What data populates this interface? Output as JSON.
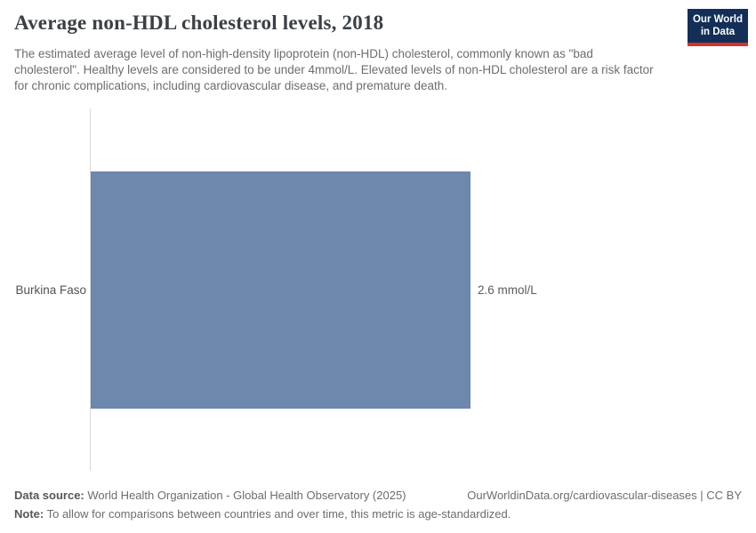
{
  "header": {
    "title": "Average non-HDL cholesterol levels, 2018",
    "subtitle": "The estimated average level of non-high-density lipoprotein (non-HDL) cholesterol, commonly known as \"bad cholesterol\". Healthy levels are considered to be under 4mmol/L. Elevated levels of non-HDL cholesterol are a risk factor for chronic complications, including cardiovascular disease, and premature death.",
    "logo": {
      "line1": "Our World",
      "line2": "in Data",
      "bg_color": "#132f57",
      "stripe_color": "#d0342c"
    }
  },
  "chart_data": {
    "type": "bar",
    "orientation": "horizontal",
    "title": "Average non-HDL cholesterol levels, 2018",
    "categories": [
      "Burkina Faso"
    ],
    "values": [
      2.6
    ],
    "unit": "mmol/L",
    "value_labels": [
      "2.6 mmol/L"
    ],
    "xlim": [
      0,
      4.5
    ],
    "grid": false,
    "legend": false,
    "bar_color": "#6d87ad",
    "axis_line_color": "#d9d9d9"
  },
  "footer": {
    "data_source_label": "Data source:",
    "data_source": " World Health Organization - Global Health Observatory (2025)",
    "link": "OurWorldinData.org/cardiovascular-diseases | CC BY",
    "note_label": "Note:",
    "note": " To allow for comparisons between countries and over time, this metric is age-standardized."
  }
}
